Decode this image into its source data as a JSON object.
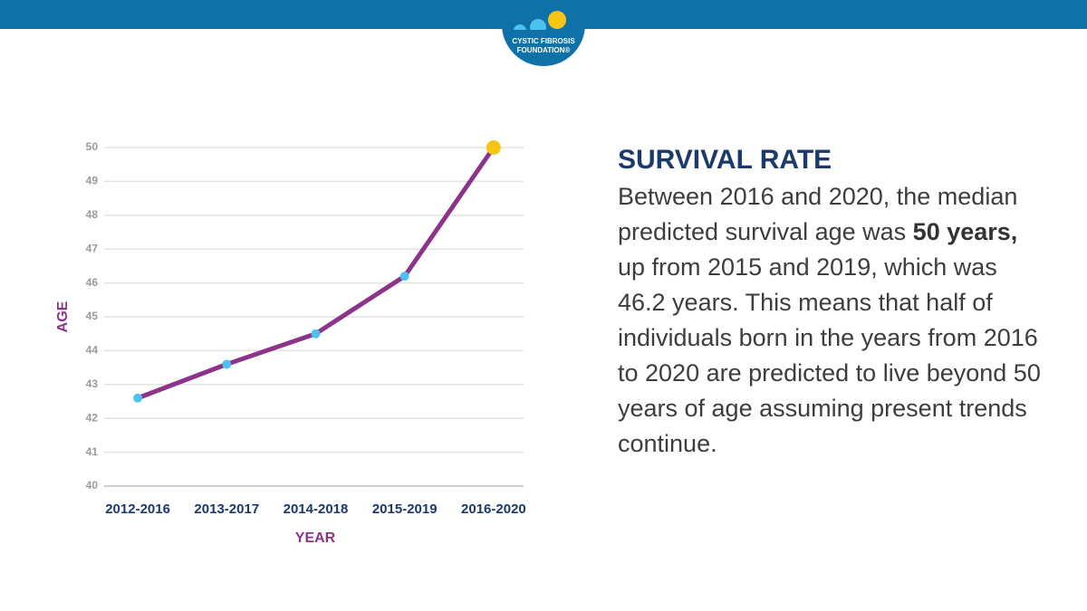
{
  "header": {
    "logo_line1": "CYSTIC FIBROSIS",
    "logo_line2": "FOUNDATION®"
  },
  "text_panel": {
    "title": "SURVIVAL RATE",
    "body": [
      "Between 2016 and 2020, the median predicted survival age was ",
      "50 years,",
      " up from 2015 and 2019, which was 46.2 years. This means that half of individuals born in the years from 2016 to 2020 are predicted to live beyond 50 years of age assuming present trends continue."
    ]
  },
  "chart_data": {
    "type": "line",
    "categories": [
      "2012-2016",
      "2013-2017",
      "2014-2018",
      "2015-2019",
      "2016-2020"
    ],
    "series": [
      {
        "color": "#8b348a",
        "values": [
          42.6,
          43.6,
          44.5,
          46.2,
          50
        ],
        "marker_colors": [
          "#4cc3ef",
          "#4cc3ef",
          "#4cc3ef",
          "#4cc3ef",
          "#f6c516"
        ]
      }
    ],
    "x_label": "YEAR",
    "y_label": "AGE",
    "ylim": [
      40,
      50
    ],
    "yticks": [
      40,
      41,
      42,
      43,
      44,
      45,
      46,
      47,
      48,
      49,
      50
    ],
    "grid": true
  }
}
